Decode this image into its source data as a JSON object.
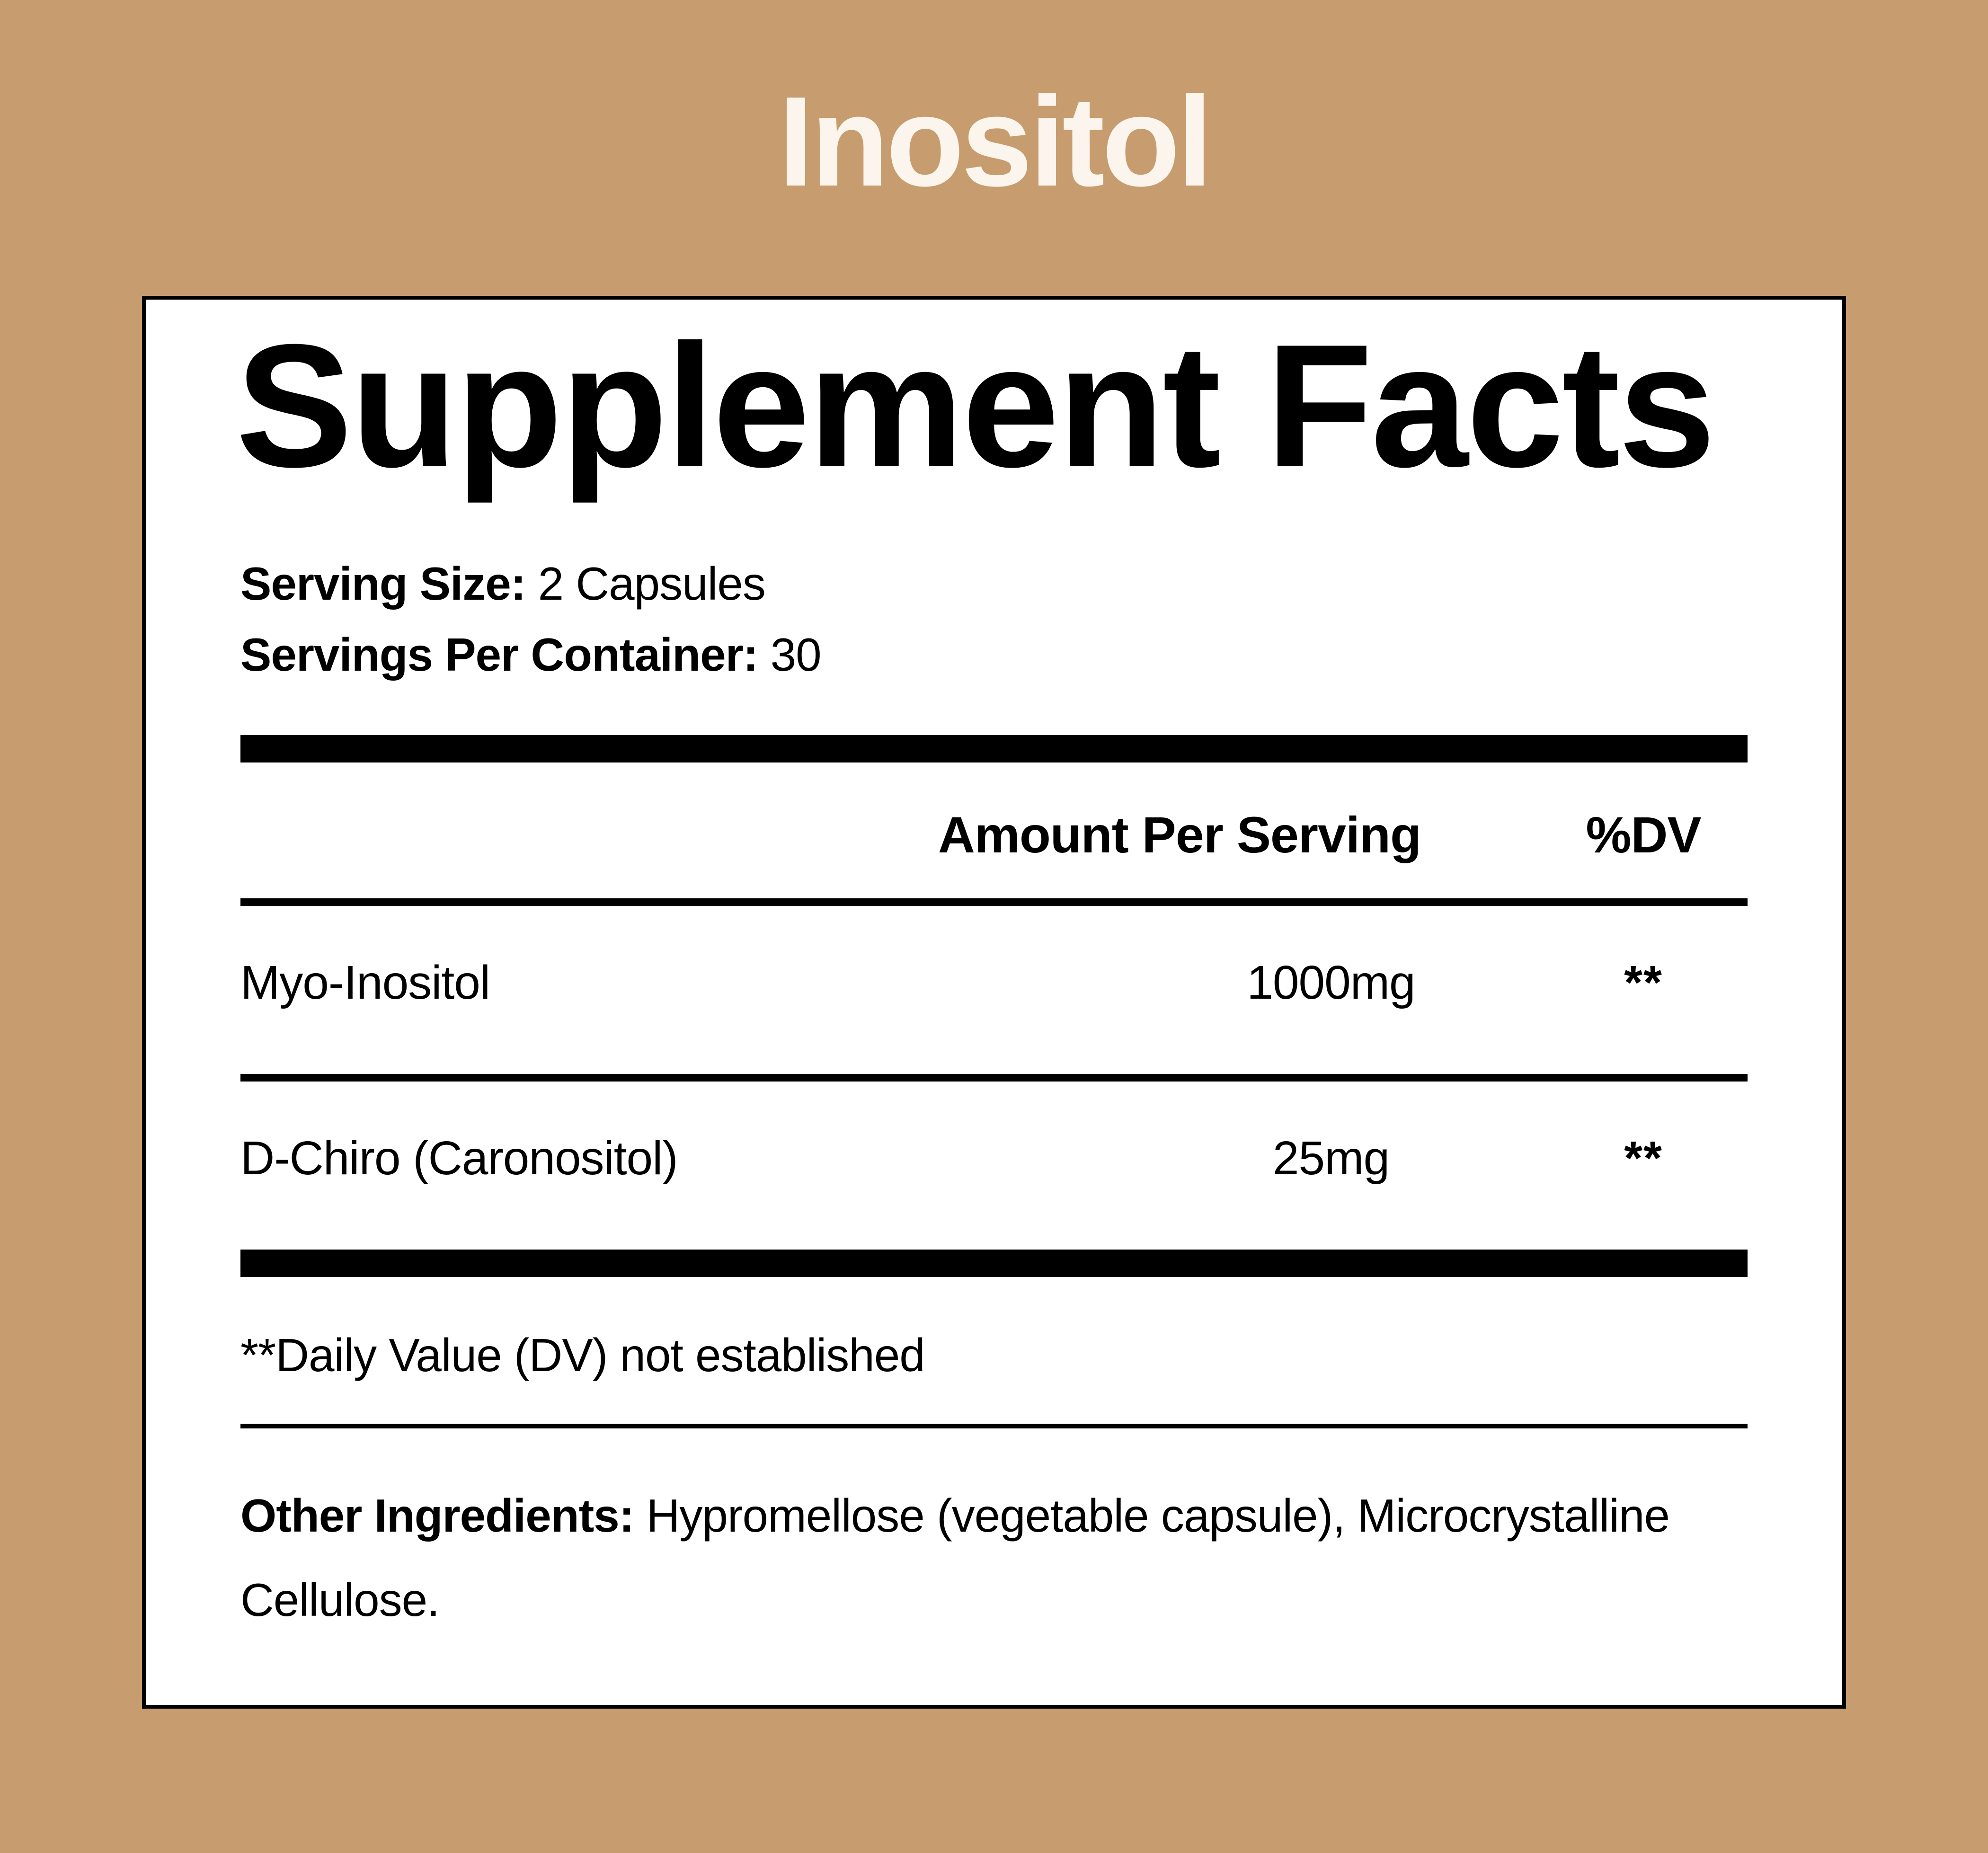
{
  "page": {
    "background_color": "#C79C6E",
    "title": "Inositol",
    "title_color": "#FBF5ED"
  },
  "panel": {
    "background_color": "#FFFFFF",
    "border_color": "#000000",
    "heading": "Supplement Facts",
    "serving": {
      "size_label": "Serving Size:",
      "size_value": " 2 Capsules",
      "per_container_label": "Servings Per Container:",
      "per_container_value": " 30"
    },
    "table": {
      "header": {
        "amount": "Amount Per Serving",
        "dv": "%DV"
      },
      "rows": [
        {
          "name": "Myo-Inositol",
          "amount": "1000mg",
          "dv": "**"
        },
        {
          "name": "D-Chiro (Caronositol)",
          "amount": "25mg",
          "dv": "**"
        }
      ]
    },
    "footnote": "**Daily Value (DV) not established",
    "other_ingredients": {
      "label": "Other Ingredients:",
      "value": " Hypromellose (vegetable capsule), Microcrystalline Cellulose."
    }
  }
}
